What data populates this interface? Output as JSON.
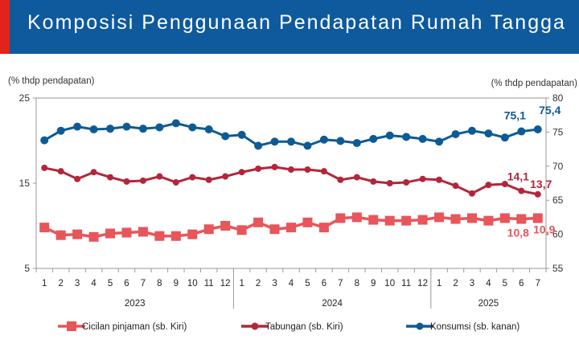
{
  "title": "Komposisi Penggunaan Pendapatan Rumah Tangga",
  "chart_data": {
    "type": "line",
    "left_axis_label": "(% thdp pendapatan)",
    "right_axis_label": "(% thdp pendapatan)",
    "y_left": {
      "min": 5,
      "max": 25,
      "ticks": [
        5,
        15,
        25
      ]
    },
    "y_right": {
      "min": 55,
      "max": 80,
      "ticks": [
        55,
        60,
        65,
        70,
        75,
        80
      ]
    },
    "x_ticks": [
      "1",
      "2",
      "3",
      "4",
      "5",
      "6",
      "7",
      "8",
      "9",
      "10",
      "11",
      "12",
      "1",
      "2",
      "3",
      "4",
      "5",
      "6",
      "7",
      "8",
      "9",
      "10",
      "11",
      "12",
      "1",
      "2",
      "3",
      "4",
      "5",
      "6",
      "7"
    ],
    "years": [
      {
        "label": "2023",
        "start": 0,
        "end": 11
      },
      {
        "label": "2024",
        "start": 12,
        "end": 23
      },
      {
        "label": "2025",
        "start": 24,
        "end": 30
      }
    ],
    "series": [
      {
        "name": "Cicilan pinjaman (sb. Kiri)",
        "axis": "left",
        "color": "#e8555a",
        "marker": "square",
        "values": [
          9.8,
          8.9,
          9.0,
          8.7,
          9.1,
          9.2,
          9.3,
          8.8,
          8.8,
          9.0,
          9.6,
          10.0,
          9.5,
          10.4,
          9.6,
          9.8,
          10.4,
          9.8,
          10.9,
          11.0,
          10.7,
          10.6,
          10.6,
          10.7,
          11.0,
          10.8,
          10.9,
          10.6,
          10.9,
          10.8,
          10.9
        ]
      },
      {
        "name": "Tabungan (sb. Kiri)",
        "axis": "left",
        "color": "#b3263a",
        "marker": "circle",
        "values": [
          16.8,
          16.4,
          15.5,
          16.3,
          15.7,
          15.2,
          15.3,
          15.8,
          15.1,
          15.7,
          15.4,
          15.8,
          16.3,
          16.7,
          16.9,
          16.6,
          16.6,
          16.4,
          15.4,
          15.7,
          15.2,
          15.0,
          15.1,
          15.5,
          15.4,
          14.7,
          13.8,
          14.8,
          14.9,
          14.1,
          13.7
        ]
      },
      {
        "name": "Konsumsi (sb. kanan)",
        "axis": "right",
        "color": "#0d5b94",
        "marker": "circle",
        "values": [
          73.8,
          75.2,
          75.8,
          75.4,
          75.5,
          75.8,
          75.5,
          75.7,
          76.3,
          75.7,
          75.4,
          74.4,
          74.6,
          73.0,
          73.6,
          73.6,
          73.0,
          73.9,
          73.7,
          73.4,
          74.0,
          74.5,
          74.3,
          74.0,
          73.6,
          74.7,
          75.2,
          74.8,
          74.2,
          75.1,
          75.4
        ]
      }
    ],
    "annotations": [
      {
        "text": "75,4",
        "series": 2,
        "index": 30
      },
      {
        "text": "75,1",
        "series": 2,
        "index": 29
      },
      {
        "text": "14,1",
        "series": 1,
        "index": 29
      },
      {
        "text": "13,7",
        "series": 1,
        "index": 30
      },
      {
        "text": "10,8",
        "series": 0,
        "index": 29
      },
      {
        "text": "10,9",
        "series": 0,
        "index": 30
      }
    ]
  }
}
